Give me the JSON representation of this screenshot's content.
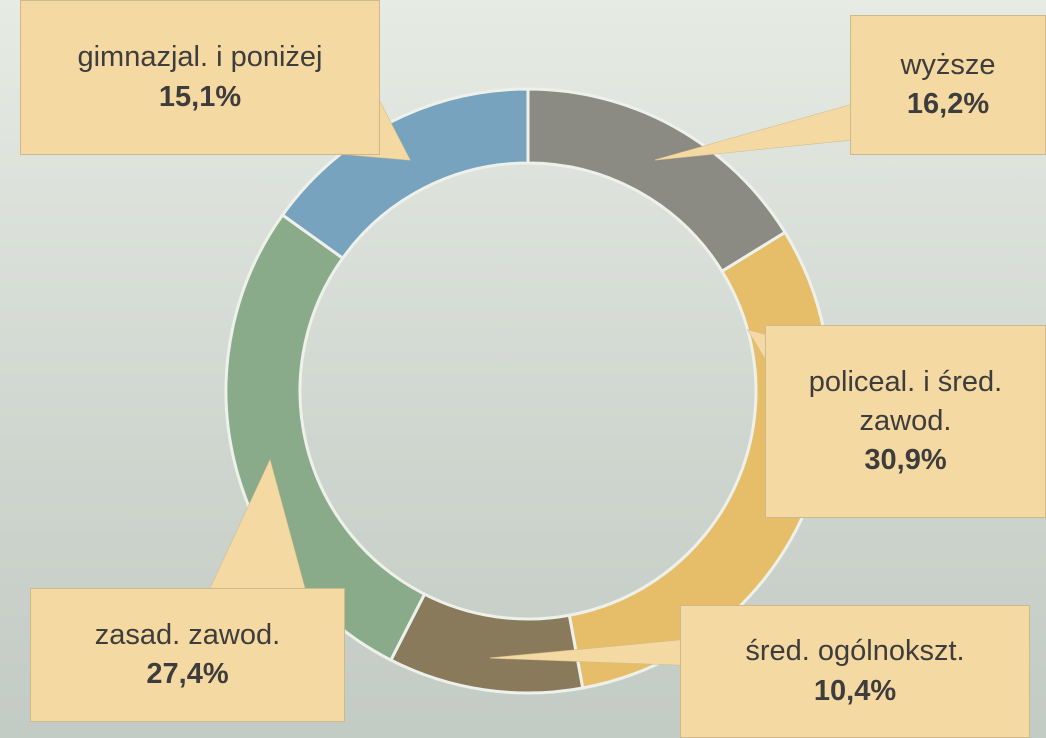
{
  "chart_data": {
    "type": "donut",
    "categories": [
      "wyższe",
      "policeal. i śred. zawod.",
      "śred. ogólnokszt.",
      "zasad. zawod.",
      "gimnazjal. i poniżej"
    ],
    "values": [
      16.2,
      30.9,
      10.4,
      27.4,
      15.1
    ],
    "value_labels": [
      "16,2%",
      "30,9%",
      "10,4%",
      "27,4%",
      "15,1%"
    ],
    "colors": [
      "#8c8b83",
      "#e6be6a",
      "#8a7a5c",
      "#8aab8a",
      "#77a3be"
    ]
  }
}
